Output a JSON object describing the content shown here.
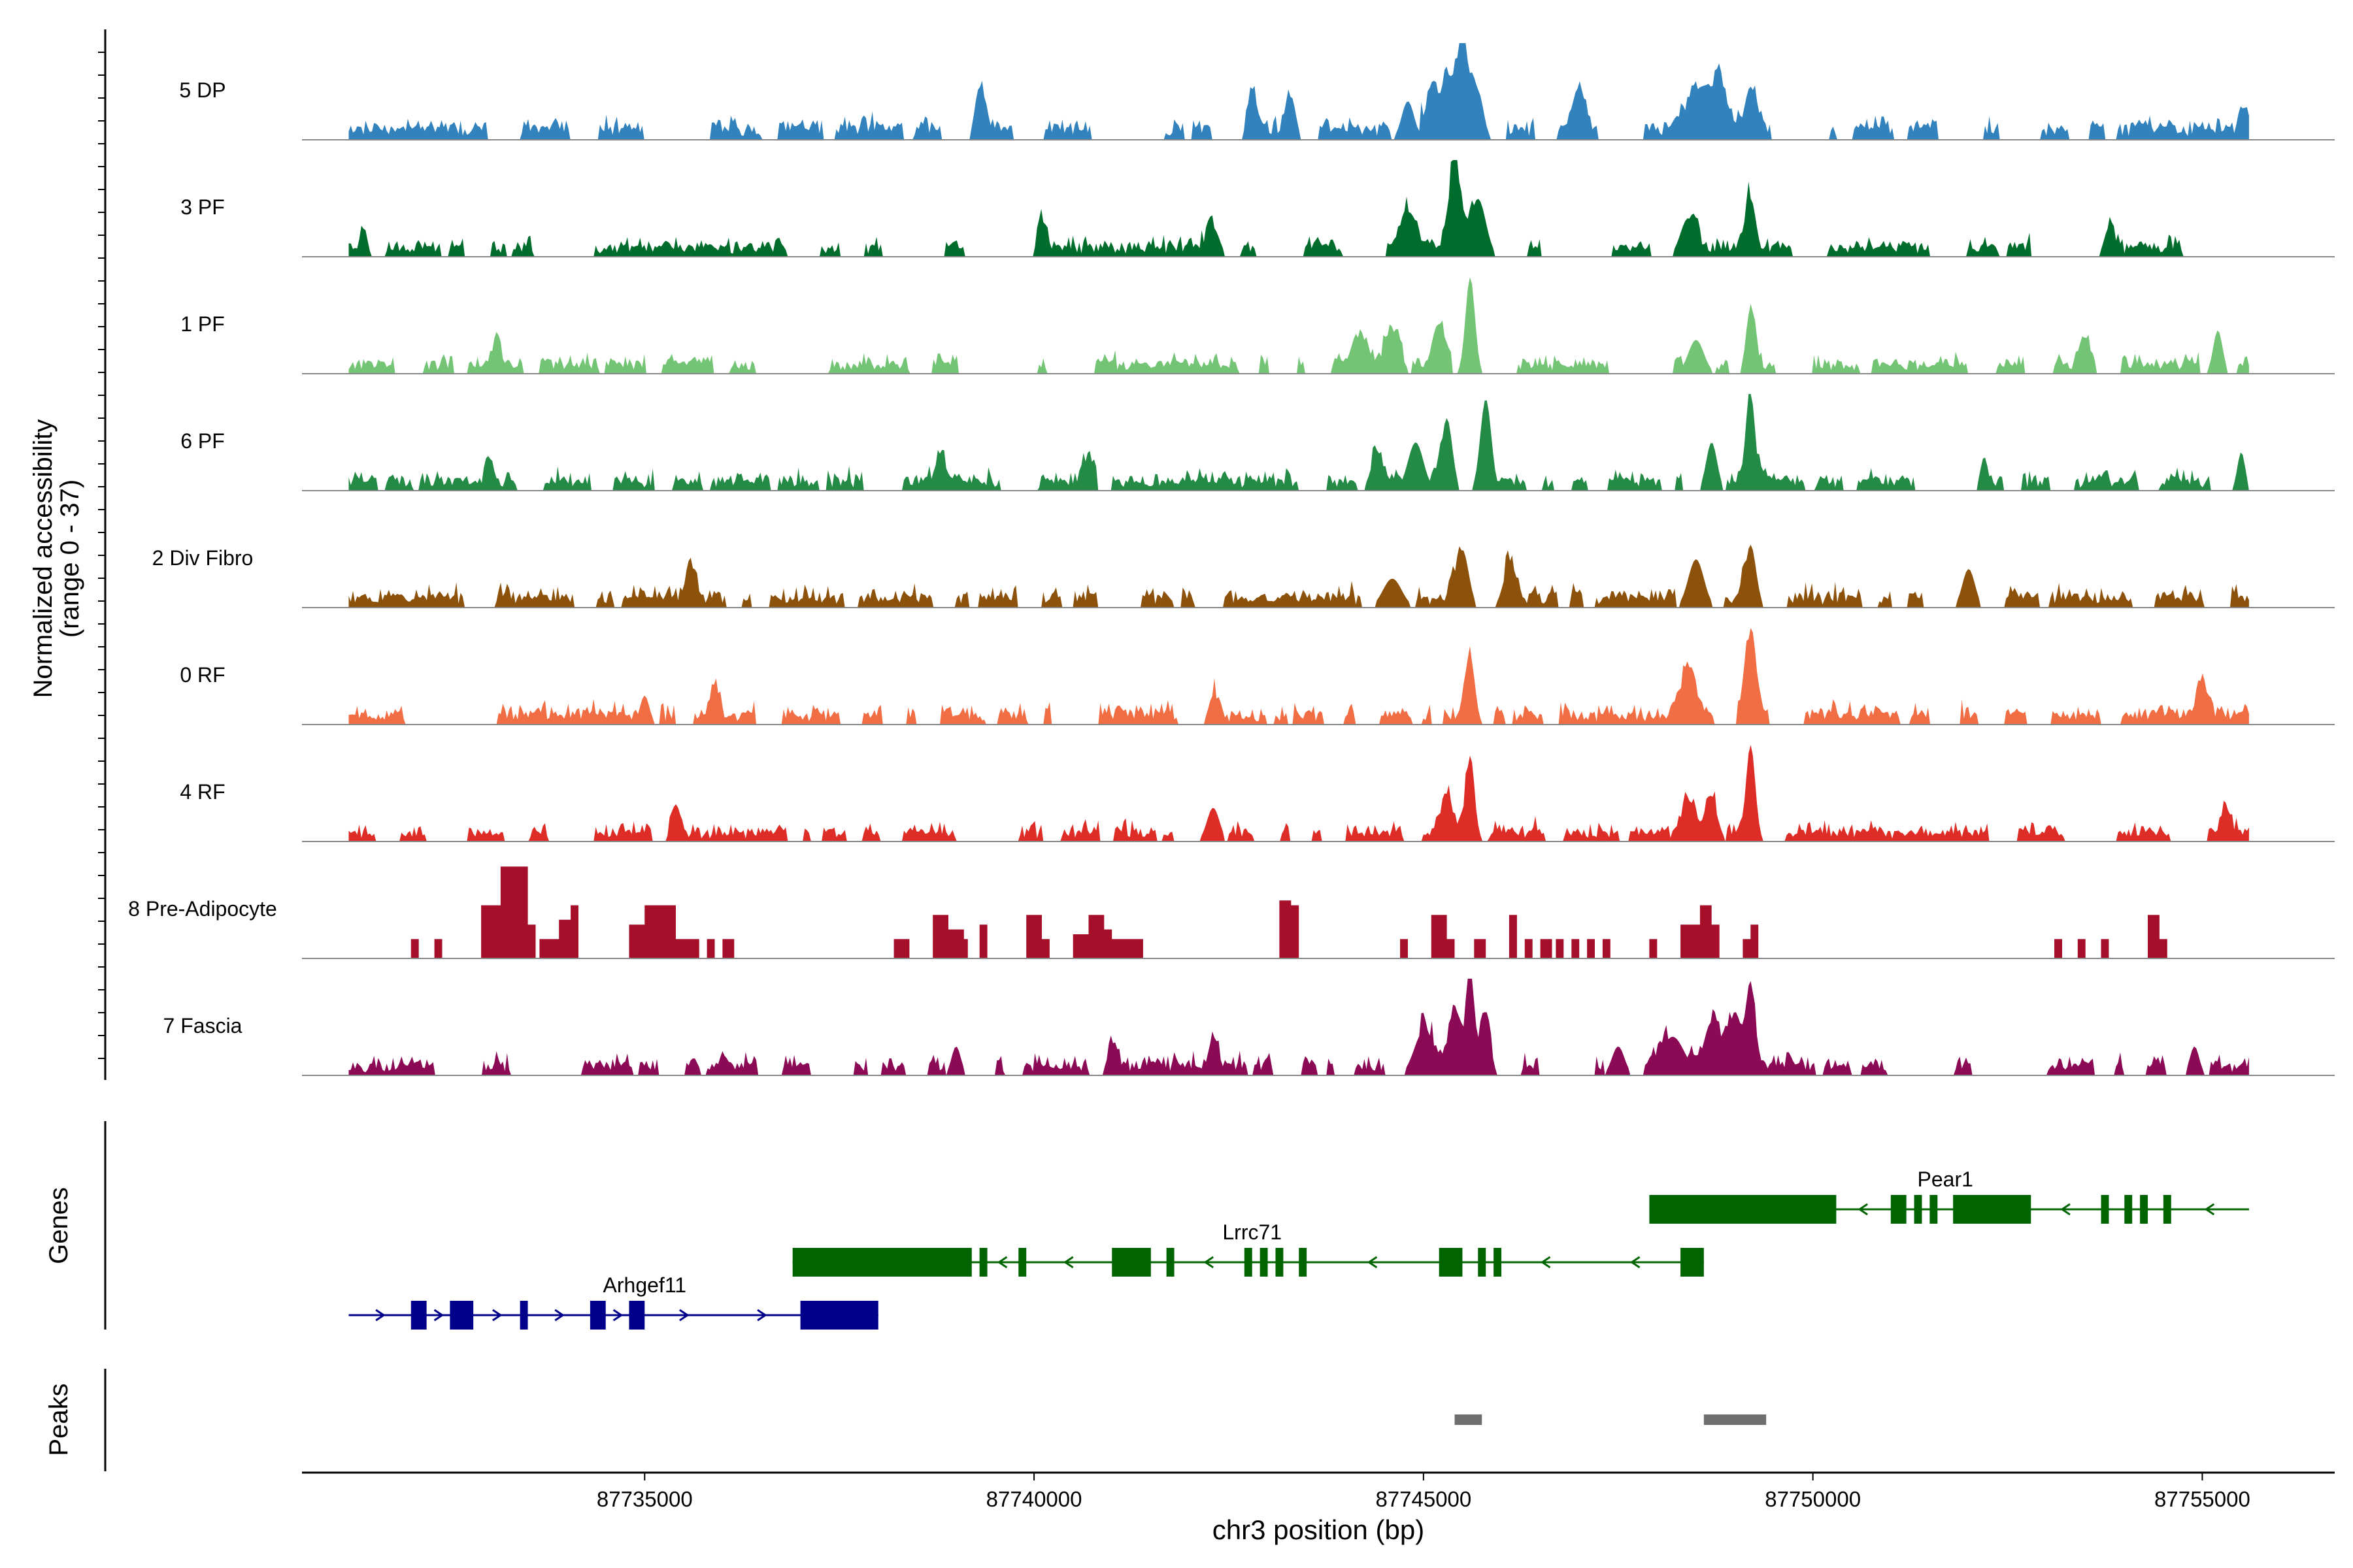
{
  "chart_data": {
    "type": "area",
    "title": "",
    "ylabel_lines": [
      "Normalized accessibility",
      "(range 0 - 37)"
    ],
    "xlabel": "chr3 position (bp)",
    "xlim": [
      87730600,
      87756700
    ],
    "xticks": [
      87735000,
      87740000,
      87745000,
      87750000,
      87755000
    ],
    "xtick_labels": [
      "87735000",
      "87740000",
      "87745000",
      "87750000",
      "87755000"
    ],
    "ylim": [
      0,
      37
    ],
    "signal_range": [
      87731200,
      87755600
    ],
    "tracks": [
      {
        "name": "5 DP",
        "color": "#3182bd",
        "seed": 11,
        "base": 0.12,
        "noise": 0.16,
        "density": 0.62,
        "peaks": [
          [
            87739300,
            0.55,
            60
          ],
          [
            87742800,
            0.45,
            60
          ],
          [
            87743300,
            0.45,
            60
          ],
          [
            87744800,
            0.4,
            80
          ],
          [
            87745100,
            0.45,
            60
          ],
          [
            87745300,
            0.6,
            80
          ],
          [
            87745500,
            1.0,
            70
          ],
          [
            87745700,
            0.5,
            70
          ],
          [
            87747000,
            0.45,
            80
          ],
          [
            87748500,
            0.4,
            150
          ],
          [
            87748800,
            0.5,
            100
          ],
          [
            87749200,
            0.55,
            80
          ],
          [
            87755500,
            0.35,
            50
          ]
        ]
      },
      {
        "name": "3 PF",
        "color": "#006d2c",
        "seed": 23,
        "base": 0.1,
        "noise": 0.14,
        "density": 0.6,
        "peaks": [
          [
            87731400,
            0.3,
            40
          ],
          [
            87740100,
            0.3,
            60
          ],
          [
            87742300,
            0.3,
            80
          ],
          [
            87744800,
            0.4,
            100
          ],
          [
            87745400,
            1.0,
            70
          ],
          [
            87745700,
            0.6,
            100
          ],
          [
            87748400,
            0.4,
            100
          ],
          [
            87749200,
            0.6,
            70
          ],
          [
            87753800,
            0.3,
            60
          ]
        ]
      },
      {
        "name": "1 PF",
        "color": "#74c476",
        "seed": 37,
        "base": 0.1,
        "noise": 0.14,
        "density": 0.65,
        "peaks": [
          [
            87733100,
            0.3,
            50
          ],
          [
            87744200,
            0.35,
            80
          ],
          [
            87744600,
            0.4,
            100
          ],
          [
            87745200,
            0.45,
            80
          ],
          [
            87745600,
            1.0,
            60
          ],
          [
            87748500,
            0.35,
            100
          ],
          [
            87749200,
            0.6,
            60
          ],
          [
            87753500,
            0.3,
            60
          ],
          [
            87755200,
            0.45,
            60
          ]
        ]
      },
      {
        "name": "6 PF",
        "color": "#238b45",
        "seed": 41,
        "base": 0.1,
        "noise": 0.14,
        "density": 0.6,
        "peaks": [
          [
            87733000,
            0.3,
            40
          ],
          [
            87738800,
            0.3,
            60
          ],
          [
            87740700,
            0.3,
            60
          ],
          [
            87744400,
            0.35,
            80
          ],
          [
            87744900,
            0.5,
            100
          ],
          [
            87745300,
            0.75,
            70
          ],
          [
            87745800,
            0.95,
            70
          ],
          [
            87748700,
            0.5,
            70
          ],
          [
            87749200,
            1.0,
            60
          ],
          [
            87752200,
            0.35,
            50
          ],
          [
            87755500,
            0.4,
            50
          ]
        ]
      },
      {
        "name": "2 Div Fibro",
        "color": "#8c510a",
        "seed": 53,
        "base": 0.1,
        "noise": 0.18,
        "density": 0.6,
        "peaks": [
          [
            87735600,
            0.35,
            60
          ],
          [
            87744600,
            0.3,
            120
          ],
          [
            87745500,
            0.6,
            80
          ],
          [
            87746100,
            0.4,
            80
          ],
          [
            87748500,
            0.5,
            100
          ],
          [
            87749200,
            0.65,
            70
          ],
          [
            87752000,
            0.4,
            80
          ]
        ]
      },
      {
        "name": "0 RF",
        "color": "#f16d43",
        "seed": 67,
        "base": 0.1,
        "noise": 0.18,
        "density": 0.62,
        "peaks": [
          [
            87735000,
            0.3,
            60
          ],
          [
            87735900,
            0.35,
            60
          ],
          [
            87742300,
            0.3,
            60
          ],
          [
            87745600,
            0.7,
            60
          ],
          [
            87748400,
            0.5,
            100
          ],
          [
            87749200,
            0.9,
            70
          ],
          [
            87755000,
            0.4,
            70
          ]
        ]
      },
      {
        "name": "4 RF",
        "color": "#de2d26",
        "seed": 79,
        "base": 0.09,
        "noise": 0.15,
        "density": 0.62,
        "peaks": [
          [
            87735400,
            0.3,
            60
          ],
          [
            87742300,
            0.35,
            80
          ],
          [
            87745300,
            0.4,
            80
          ],
          [
            87745600,
            0.75,
            60
          ],
          [
            87748400,
            0.35,
            80
          ],
          [
            87748700,
            0.4,
            80
          ],
          [
            87749200,
            1.0,
            60
          ],
          [
            87755300,
            0.3,
            60
          ]
        ]
      },
      {
        "name": "8 Pre-Adipocyte",
        "color": "#a50f2a",
        "mode": "blocks",
        "blocks": [
          [
            87732000,
            87732100,
            0.2
          ],
          [
            87732300,
            87732400,
            0.2
          ],
          [
            87732900,
            87733150,
            0.55
          ],
          [
            87733150,
            87733500,
            0.95
          ],
          [
            87733500,
            87733600,
            0.35
          ],
          [
            87733650,
            87733900,
            0.2
          ],
          [
            87733900,
            87734050,
            0.4
          ],
          [
            87734050,
            87734150,
            0.55
          ],
          [
            87734800,
            87735000,
            0.35
          ],
          [
            87735000,
            87735400,
            0.55
          ],
          [
            87735400,
            87735700,
            0.2
          ],
          [
            87735800,
            87735900,
            0.2
          ],
          [
            87736000,
            87736150,
            0.2
          ],
          [
            87738200,
            87738400,
            0.2
          ],
          [
            87738700,
            87738900,
            0.45
          ],
          [
            87738900,
            87739100,
            0.3
          ],
          [
            87739000,
            87739150,
            0.2
          ],
          [
            87739300,
            87739400,
            0.35
          ],
          [
            87739900,
            87740100,
            0.45
          ],
          [
            87740100,
            87740200,
            0.2
          ],
          [
            87740500,
            87740700,
            0.25
          ],
          [
            87740700,
            87740900,
            0.45
          ],
          [
            87740900,
            87741000,
            0.3
          ],
          [
            87741000,
            87741200,
            0.2
          ],
          [
            87741200,
            87741400,
            0.2
          ],
          [
            87743150,
            87743300,
            0.6
          ],
          [
            87743300,
            87743400,
            0.55
          ],
          [
            87744700,
            87744800,
            0.2
          ],
          [
            87745100,
            87745300,
            0.45
          ],
          [
            87745300,
            87745400,
            0.2
          ],
          [
            87745650,
            87745800,
            0.2
          ],
          [
            87746100,
            87746200,
            0.45
          ],
          [
            87746300,
            87746400,
            0.2
          ],
          [
            87746500,
            87746650,
            0.2
          ],
          [
            87746700,
            87746800,
            0.2
          ],
          [
            87746900,
            87747000,
            0.2
          ],
          [
            87747100,
            87747200,
            0.2
          ],
          [
            87747300,
            87747400,
            0.2
          ],
          [
            87747900,
            87748000,
            0.2
          ],
          [
            87748300,
            87748550,
            0.35
          ],
          [
            87748550,
            87748700,
            0.55
          ],
          [
            87748650,
            87748800,
            0.35
          ],
          [
            87749100,
            87749200,
            0.2
          ],
          [
            87749200,
            87749300,
            0.35
          ],
          [
            87753100,
            87753200,
            0.2
          ],
          [
            87753400,
            87753500,
            0.2
          ],
          [
            87753700,
            87753800,
            0.2
          ],
          [
            87754300,
            87754450,
            0.45
          ],
          [
            87754450,
            87754550,
            0.2
          ]
        ]
      },
      {
        "name": "7 Fascia",
        "color": "#8c0a55",
        "seed": 97,
        "base": 0.1,
        "noise": 0.16,
        "density": 0.6,
        "peaks": [
          [
            87739000,
            0.3,
            60
          ],
          [
            87741000,
            0.3,
            60
          ],
          [
            87742300,
            0.3,
            60
          ],
          [
            87745000,
            0.45,
            120
          ],
          [
            87745400,
            0.6,
            80
          ],
          [
            87745600,
            1.0,
            50
          ],
          [
            87745800,
            0.6,
            60
          ],
          [
            87747500,
            0.3,
            80
          ],
          [
            87748200,
            0.4,
            150
          ],
          [
            87748700,
            0.55,
            100
          ],
          [
            87749000,
            0.65,
            80
          ],
          [
            87749200,
            0.95,
            60
          ],
          [
            87754900,
            0.3,
            60
          ]
        ]
      }
    ],
    "genes_label": "Genes",
    "genes": [
      {
        "name": "Pear1",
        "color": "#006400",
        "strand": "-",
        "start": 87747900,
        "end": 87755600,
        "row": 0,
        "exons": [
          [
            87747900,
            87750300
          ],
          [
            87751000,
            87751200
          ],
          [
            87751300,
            87751400
          ],
          [
            87751500,
            87751600
          ],
          [
            87751800,
            87752800
          ],
          [
            87753700,
            87753800
          ],
          [
            87754000,
            87754100
          ],
          [
            87754200,
            87754300
          ],
          [
            87754500,
            87754600
          ]
        ]
      },
      {
        "name": "Lrrc71",
        "color": "#006400",
        "strand": "-",
        "start": 87736900,
        "end": 87748600,
        "row": 1,
        "exons": [
          [
            87736900,
            87739200
          ],
          [
            87739300,
            87739400
          ],
          [
            87739800,
            87739900
          ],
          [
            87741000,
            87741500
          ],
          [
            87741700,
            87741800
          ],
          [
            87742700,
            87742800
          ],
          [
            87742900,
            87743000
          ],
          [
            87743100,
            87743200
          ],
          [
            87743400,
            87743500
          ],
          [
            87745200,
            87745500
          ],
          [
            87745700,
            87745800
          ],
          [
            87745900,
            87746000
          ],
          [
            87748300,
            87748600
          ]
        ]
      },
      {
        "name": "Arhgef11",
        "color": "#00008b",
        "strand": "+",
        "start": 87731200,
        "end": 87738000,
        "row": 2,
        "exons": [
          [
            87732000,
            87732200
          ],
          [
            87732500,
            87732800
          ],
          [
            87733400,
            87733500
          ],
          [
            87734300,
            87734500
          ],
          [
            87734800,
            87735000
          ],
          [
            87737000,
            87738000
          ]
        ]
      }
    ],
    "peaks_label": "Peaks",
    "peaks": [
      [
        87745400,
        87745750
      ],
      [
        87748600,
        87749400
      ]
    ]
  }
}
